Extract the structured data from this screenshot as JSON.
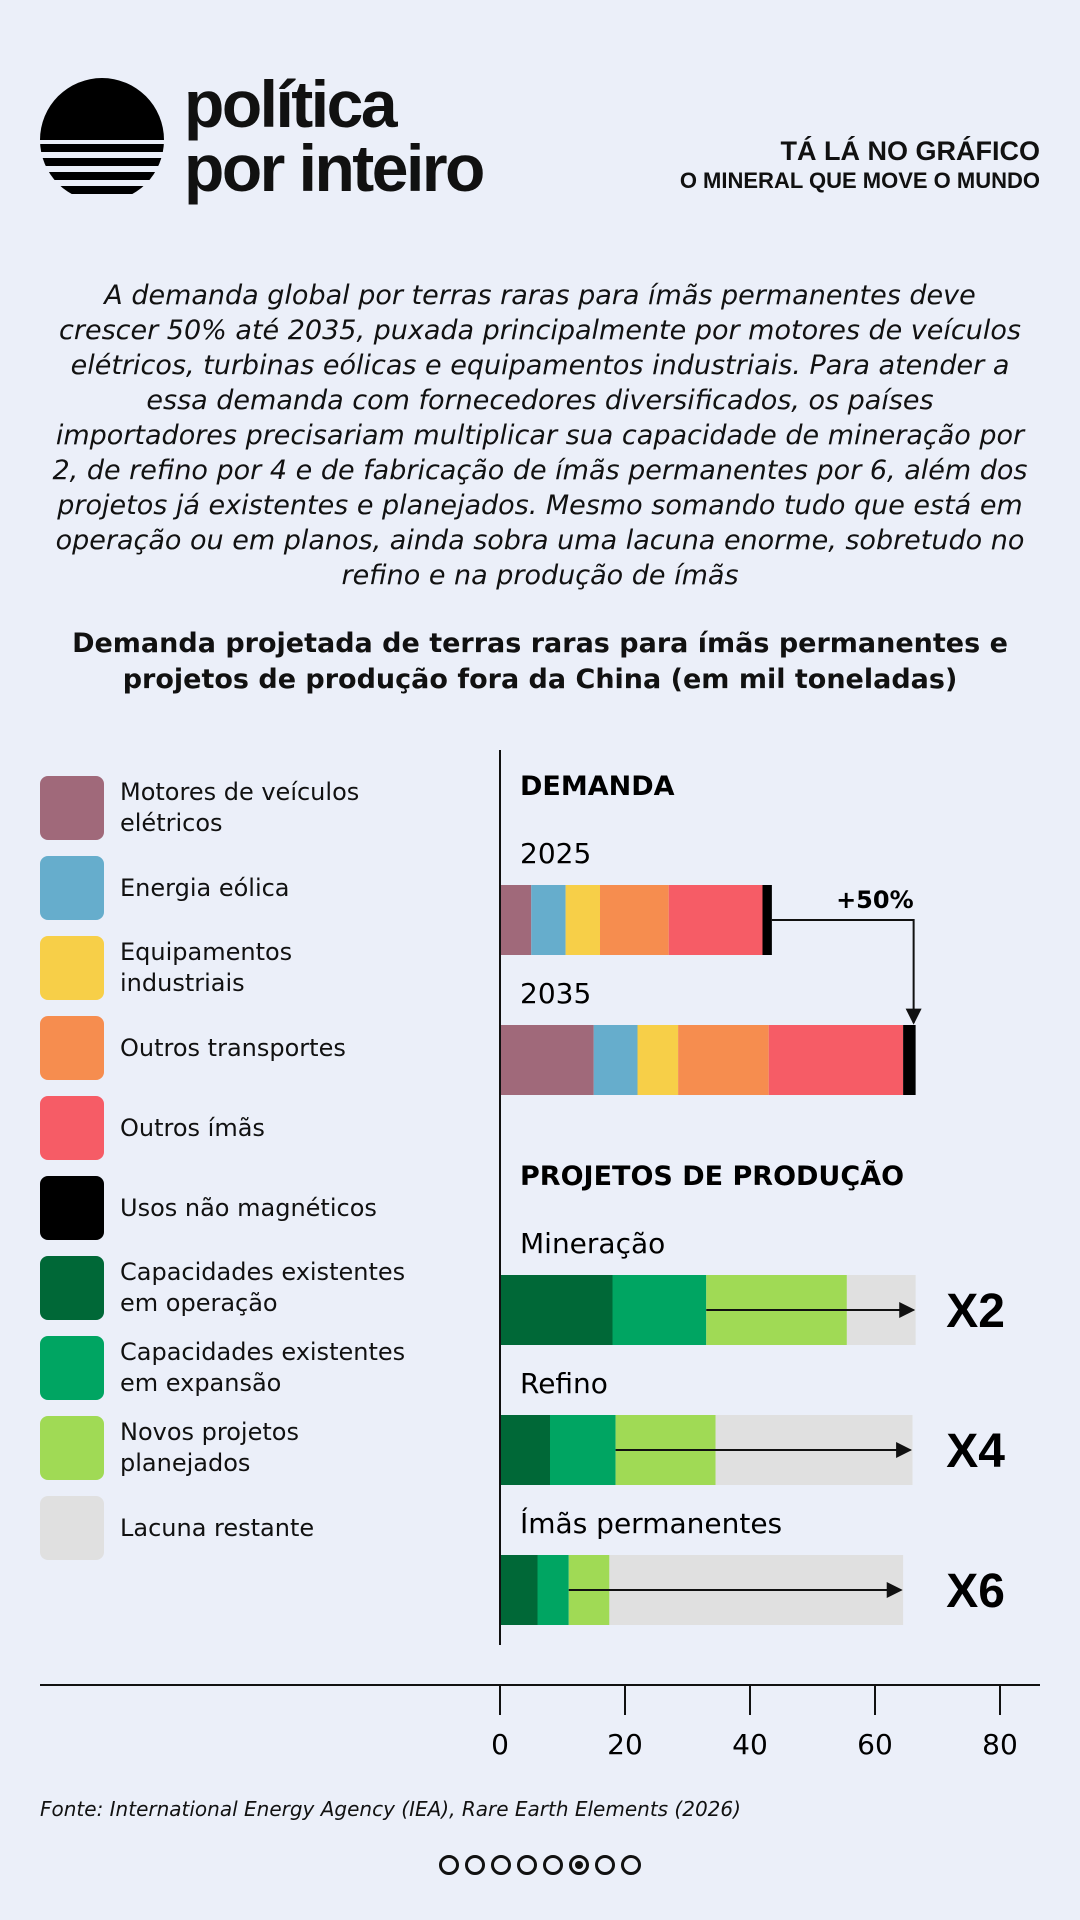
{
  "brand": {
    "name_line1": "política",
    "name_line2": "por inteiro"
  },
  "kicker": {
    "line1": "TÁ LÁ NO GRÁFICO",
    "line2": "O MINERAL QUE MOVE O MUNDO"
  },
  "intro": "A demanda global por terras raras para ímãs permanentes deve crescer 50% até 2035, puxada principalmente por motores de veículos elétricos, turbinas eólicas e equipamentos industriais. Para atender a essa demanda com fornecedores diversificados, os países importadores precisariam multiplicar sua capacidade de mineração por 2, de refino por 4 e de fabricação de ímãs permanentes por 6, além dos projetos já existentes e planejados. Mesmo somando tudo que está em operação ou em planos, ainda sobra uma lacuna enorme, sobretudo no refino e na produção de ímãs",
  "legend": [
    {
      "label": "Motores de veículos elétricos",
      "color": "#a0697a"
    },
    {
      "label": "Energia eólica",
      "color": "#66adcc"
    },
    {
      "label": "Equipamentos industriais",
      "color": "#f7cf48"
    },
    {
      "label": "Outros transportes",
      "color": "#f68d4f"
    },
    {
      "label": "Outros ímãs",
      "color": "#f65c66"
    },
    {
      "label": "Usos não magnéticos",
      "color": "#000000"
    },
    {
      "label": "Capacidades existentes em operação",
      "color": "#006837"
    },
    {
      "label": "Capacidades existentes em expansão",
      "color": "#00a562"
    },
    {
      "label": "Novos projetos planejados",
      "color": "#a0da55"
    },
    {
      "label": "Lacuna restante",
      "color": "#e0e0e0"
    }
  ],
  "chart_data": {
    "type": "bar",
    "orientation": "horizontal",
    "stacked": true,
    "title": "Demanda projetada de terras raras para ímãs permanentes e projetos de produção fora da China (em mil toneladas)",
    "xlim": [
      0,
      80
    ],
    "xticks": [
      0,
      20,
      40,
      60,
      80
    ],
    "xlabel": "",
    "demand": {
      "section_label": "DEMANDA",
      "growth_label": "+50%",
      "series_names": [
        "Motores de veículos elétricos",
        "Energia eólica",
        "Equipamentos industriais",
        "Outros transportes",
        "Outros ímãs",
        "Usos não magnéticos"
      ],
      "bars": [
        {
          "label": "2025",
          "values": [
            5,
            5.5,
            5.5,
            11,
            15,
            1.5
          ]
        },
        {
          "label": "2035",
          "values": [
            15,
            7,
            6.5,
            14.5,
            21.5,
            2
          ]
        }
      ]
    },
    "production": {
      "section_label": "PROJETOS DE PRODUÇÃO",
      "series_names": [
        "Capacidades existentes em operação",
        "Capacidades existentes em expansão",
        "Novos projetos planejados",
        "Lacuna restante"
      ],
      "bars": [
        {
          "label": "Mineração",
          "values": [
            18,
            15,
            22.5,
            11
          ],
          "multiplier": "X2"
        },
        {
          "label": "Refino",
          "values": [
            8,
            10.5,
            16,
            31.5
          ],
          "multiplier": "X4"
        },
        {
          "label": "Ímãs permanentes",
          "values": [
            6,
            5,
            6.5,
            47
          ],
          "multiplier": "X6"
        }
      ]
    }
  },
  "source": "Fonte: International Energy Agency (IEA), Rare Earth Elements (2026)",
  "pagination": {
    "total": 8,
    "active_index": 5
  }
}
